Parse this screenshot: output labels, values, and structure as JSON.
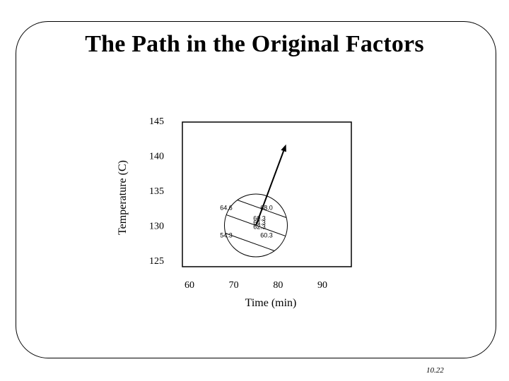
{
  "slide": {
    "title": "The Path in the Original Factors",
    "number": "10.22"
  },
  "chart_data": {
    "type": "scatter",
    "title": "",
    "xlabel": "Time (min)",
    "ylabel": "Temperature (C)",
    "xlim": [
      57,
      96
    ],
    "ylim": [
      124.2,
      146.5
    ],
    "x_ticks": [
      60,
      70,
      80,
      90
    ],
    "y_ticks": [
      125,
      130,
      135,
      140,
      145
    ],
    "grid": false,
    "design_region": {
      "center": [
        75,
        130
      ],
      "radius_x": 7.1
    },
    "contour_labels": [
      {
        "text": "64.6",
        "x": 68.3,
        "y": 132.2
      },
      {
        "text": "68.0",
        "x": 77.4,
        "y": 132.2
      },
      {
        "text": "60.3",
        "x": 75.8,
        "y": 130.7
      },
      {
        "text": "64.3",
        "x": 75.8,
        "y": 130.1
      },
      {
        "text": "62.3",
        "x": 75.8,
        "y": 129.5
      },
      {
        "text": "54.3",
        "x": 68.3,
        "y": 128.3
      },
      {
        "text": "60.3",
        "x": 77.4,
        "y": 128.3
      }
    ],
    "path": {
      "from": [
        75,
        130
      ],
      "to": [
        81.8,
        141.6
      ]
    }
  },
  "colors": {
    "line": "#000000",
    "background": "#ffffff"
  }
}
